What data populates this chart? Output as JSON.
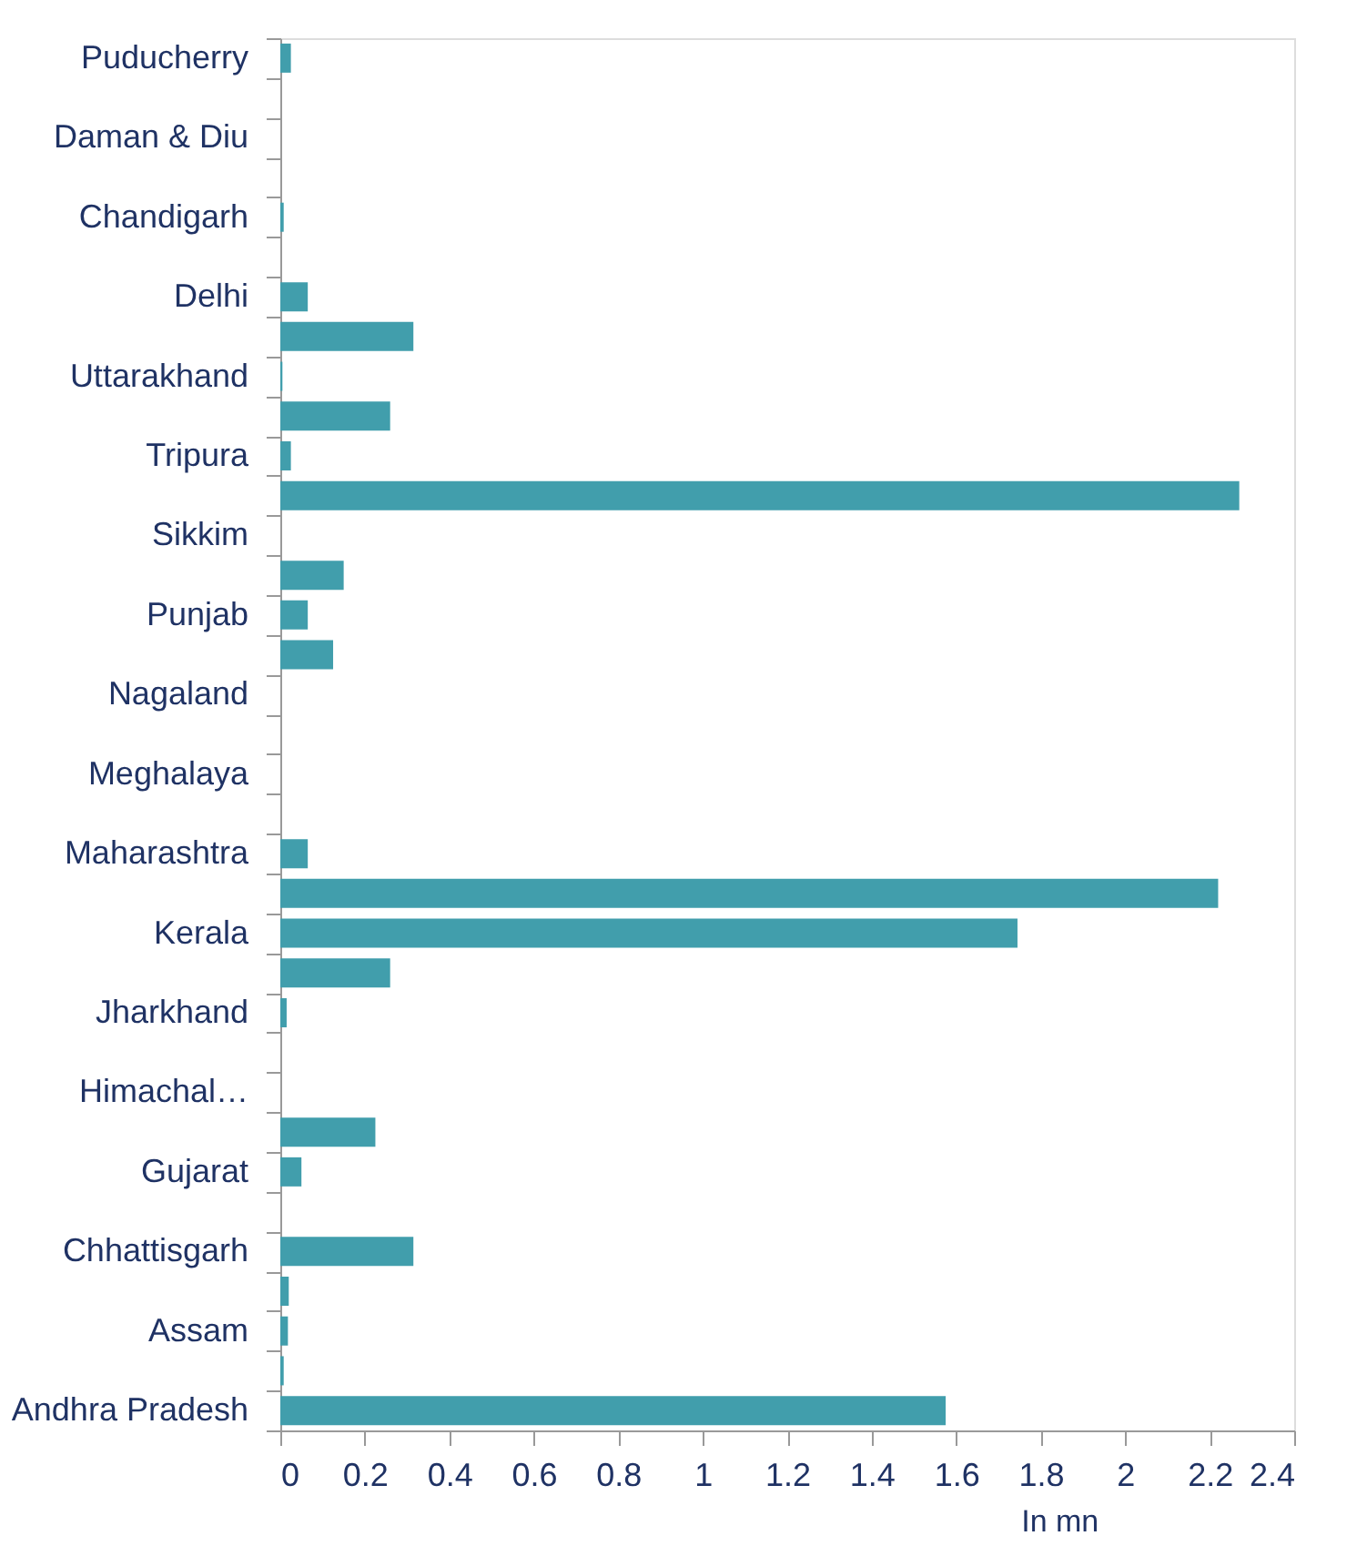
{
  "chart_data": {
    "type": "bar",
    "orientation": "horizontal",
    "xlabel": "In mn",
    "color": "#419eac",
    "categories": [
      "Puducherry",
      null,
      "Daman & Diu",
      null,
      "Chandigarh",
      null,
      "Delhi",
      null,
      "Uttarakhand",
      null,
      "Tripura",
      null,
      "Sikkim",
      null,
      "Punjab",
      null,
      "Nagaland",
      null,
      "Meghalaya",
      null,
      "Maharashtra",
      null,
      "Kerala",
      null,
      "Jharkhand",
      null,
      "Himachal…",
      null,
      "Gujarat",
      null,
      "Chhattisgarh",
      null,
      "Assam",
      null,
      "Andhra Pradesh"
    ],
    "values": [
      0.025,
      0,
      0,
      0,
      0.008,
      0,
      0.065,
      0.315,
      0.005,
      0.26,
      0.025,
      2.27,
      0,
      0.15,
      0.065,
      0.125,
      0,
      0,
      0,
      0,
      0.065,
      2.22,
      1.745,
      0.26,
      0.015,
      0,
      0,
      0.225,
      0.05,
      0,
      0.315,
      0.02,
      0.018,
      0.008,
      1.575
    ],
    "xlim": [
      0,
      2.4
    ],
    "xticks": [
      0,
      0.2,
      0.4,
      0.6,
      0.8,
      1,
      1.2,
      1.4,
      1.6,
      1.8,
      2,
      2.2,
      2.4
    ],
    "grid": false
  }
}
